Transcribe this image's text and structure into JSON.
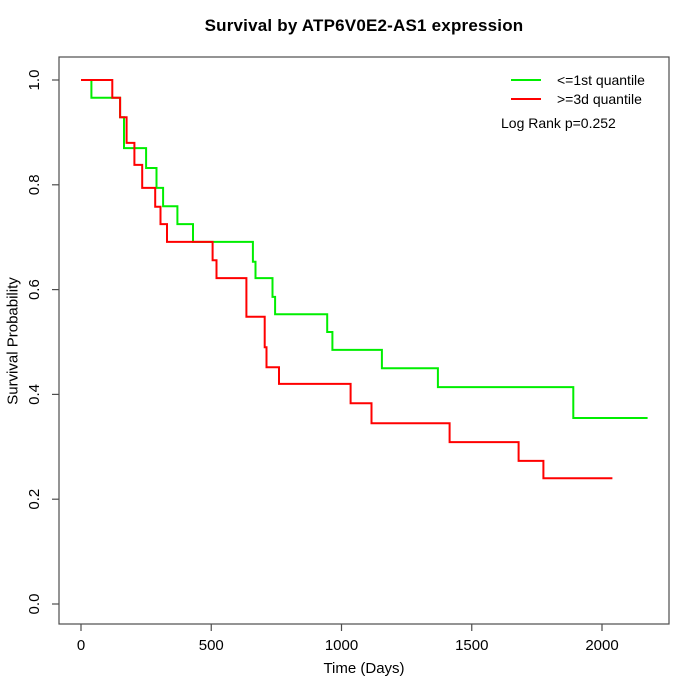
{
  "title": "Survival by ATP6V0E2-AS1 expression",
  "chart_data": {
    "type": "line",
    "subtype": "kaplan-meier-step",
    "title": "Survival by ATP6V0E2-AS1 expression",
    "xlabel": "Time (Days)",
    "ylabel": "Survival Probability",
    "xlim": [
      0,
      2200
    ],
    "ylim": [
      0.0,
      1.0
    ],
    "x_ticks": [
      "0",
      "500",
      "1000",
      "1500",
      "2000"
    ],
    "y_ticks": [
      "0.0",
      "0.2",
      "0.4",
      "0.6",
      "0.8",
      "1.0"
    ],
    "grid": false,
    "legend_position": "top-right",
    "annotation": "Log Rank p=0.252",
    "series": [
      {
        "name": "<=1st quantile",
        "color": "#00ee00",
        "end_time": 2175,
        "steps": [
          [
            0,
            1.0
          ],
          [
            40,
            0.966
          ],
          [
            150,
            0.929
          ],
          [
            165,
            0.87
          ],
          [
            250,
            0.832
          ],
          [
            290,
            0.794
          ],
          [
            315,
            0.759
          ],
          [
            370,
            0.725
          ],
          [
            430,
            0.691
          ],
          [
            660,
            0.653
          ],
          [
            670,
            0.622
          ],
          [
            735,
            0.586
          ],
          [
            745,
            0.553
          ],
          [
            945,
            0.519
          ],
          [
            965,
            0.485
          ],
          [
            1155,
            0.45
          ],
          [
            1370,
            0.414
          ],
          [
            1890,
            0.355
          ]
        ]
      },
      {
        "name": ">=3d quantile",
        "color": "#ff0000",
        "end_time": 2040,
        "steps": [
          [
            0,
            1.0
          ],
          [
            120,
            0.966
          ],
          [
            150,
            0.929
          ],
          [
            175,
            0.88
          ],
          [
            205,
            0.838
          ],
          [
            235,
            0.794
          ],
          [
            285,
            0.758
          ],
          [
            305,
            0.725
          ],
          [
            330,
            0.691
          ],
          [
            505,
            0.656
          ],
          [
            520,
            0.622
          ],
          [
            635,
            0.548
          ],
          [
            705,
            0.49
          ],
          [
            712,
            0.452
          ],
          [
            760,
            0.42
          ],
          [
            1035,
            0.383
          ],
          [
            1115,
            0.345
          ],
          [
            1415,
            0.309
          ],
          [
            1680,
            0.273
          ],
          [
            1775,
            0.24
          ]
        ]
      }
    ]
  }
}
